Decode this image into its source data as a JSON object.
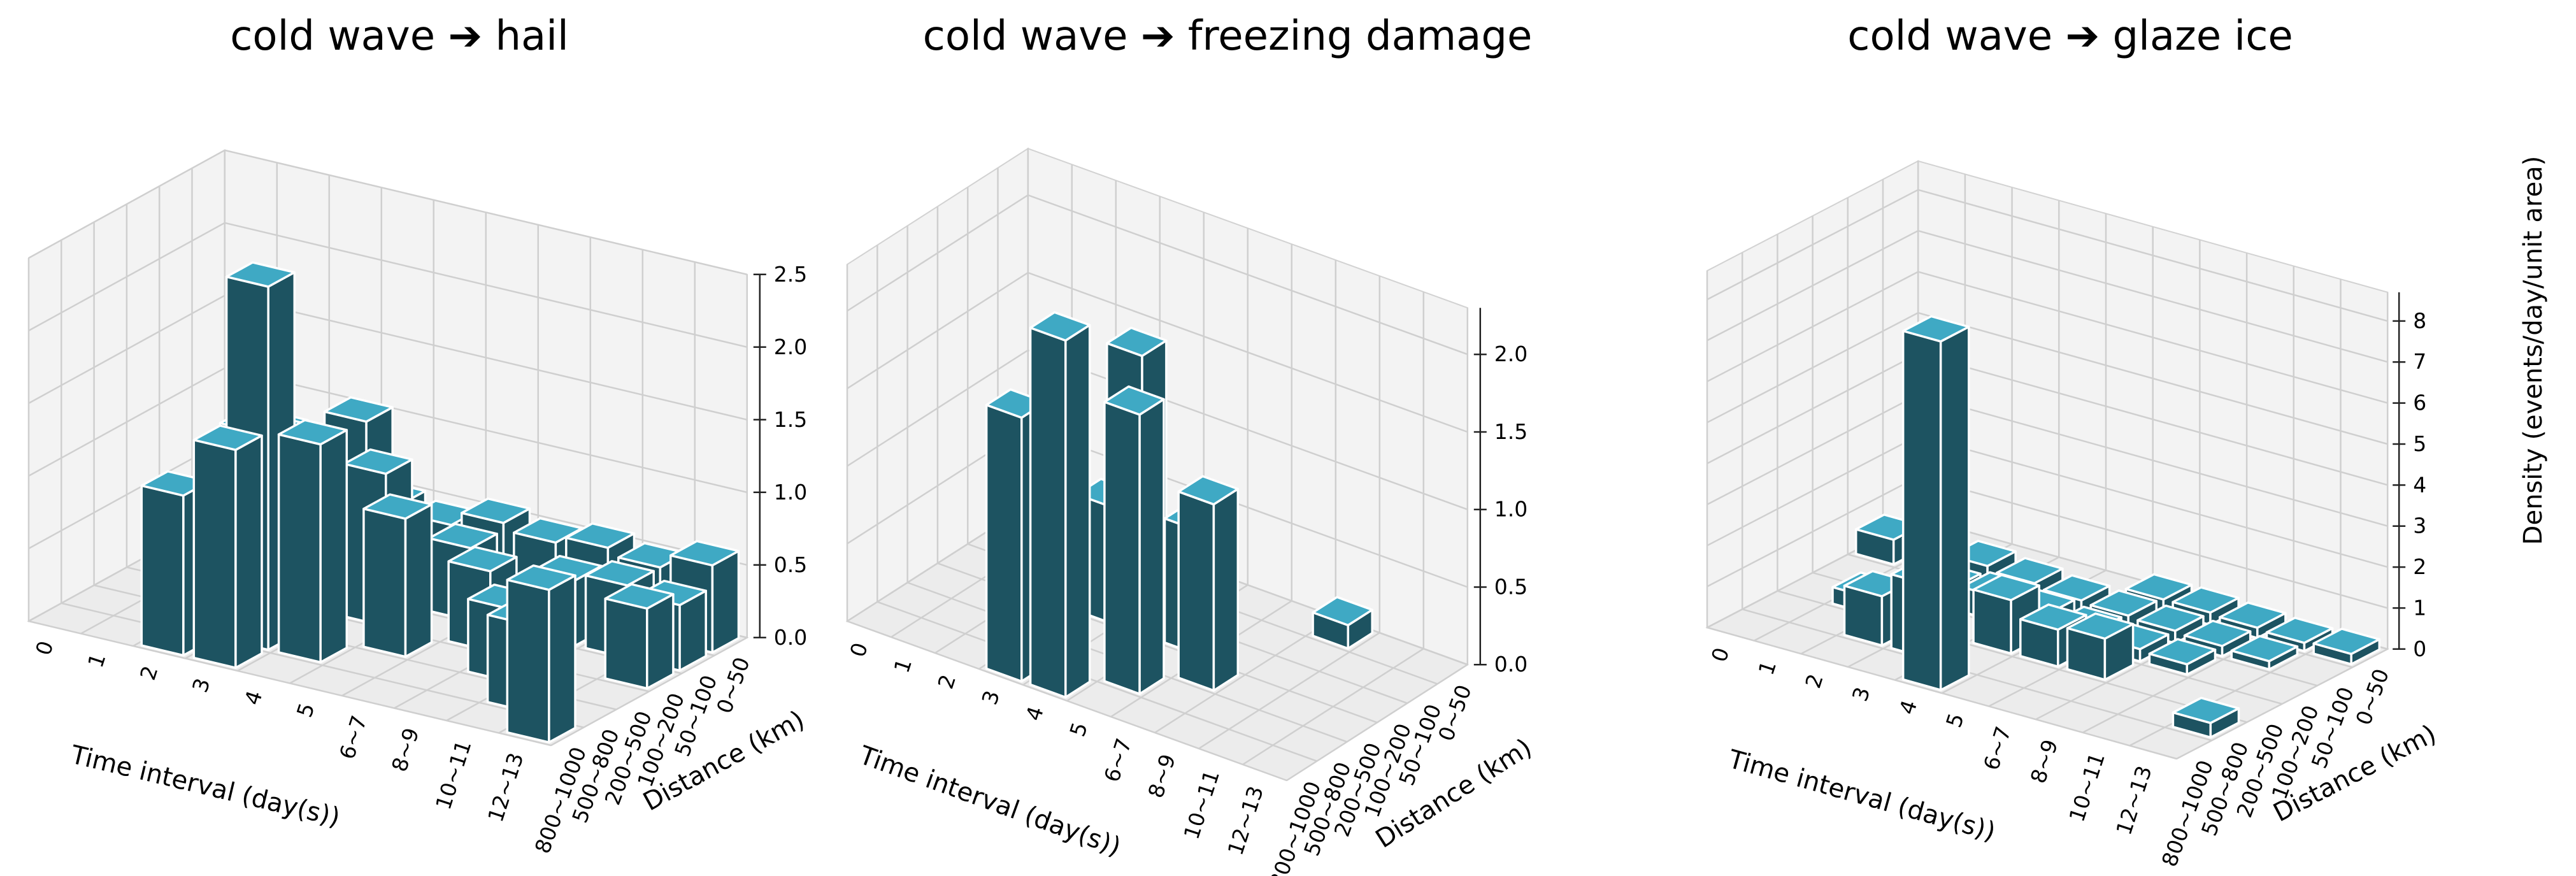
{
  "chart_data": [
    {
      "type": "bar3d",
      "title": "cold wave ➔ hail",
      "xlabel": "Time interval (day(s))",
      "ylabel": "Distance (km)",
      "zlabel": "",
      "x_ticks": [
        "0",
        "1",
        "2",
        "3",
        "4",
        "5",
        "6~7",
        "8~9",
        "10~11",
        "12~13"
      ],
      "y_ticks": [
        "0~50",
        "50~100",
        "100~200",
        "200~500",
        "500~800",
        "800~1000"
      ],
      "z_ticks": [
        "0.0",
        "0.5",
        "1.0",
        "1.5",
        "2.0",
        "2.5"
      ],
      "zlim": [
        0,
        2.5
      ],
      "bars": [
        {
          "x": 2,
          "y": 0,
          "z": 1.1
        },
        {
          "x": 3,
          "y": 1,
          "z": 2.5
        },
        {
          "x": 3,
          "y": 0,
          "z": 1.5
        },
        {
          "x": 3,
          "y": 2,
          "z": 1.3
        },
        {
          "x": 4,
          "y": 1,
          "z": 1.5
        },
        {
          "x": 1,
          "y": 4,
          "z": 0.95
        },
        {
          "x": 2,
          "y": 3,
          "z": 1.15
        },
        {
          "x": 3,
          "y": 4,
          "z": 1.2
        },
        {
          "x": 4,
          "y": 3,
          "z": 1.05
        },
        {
          "x": 5,
          "y": 2,
          "z": 0.95
        },
        {
          "x": 0,
          "y": 5,
          "z": 0.55
        },
        {
          "x": 1,
          "y": 5,
          "z": 0.5
        },
        {
          "x": 2,
          "y": 5,
          "z": 0.55
        },
        {
          "x": 3,
          "y": 5,
          "z": 0.5
        },
        {
          "x": 4,
          "y": 5,
          "z": 0.45
        },
        {
          "x": 5,
          "y": 4,
          "z": 0.5
        },
        {
          "x": 6,
          "y": 3,
          "z": 0.55
        },
        {
          "x": 7,
          "y": 2,
          "z": 0.5
        },
        {
          "x": 8,
          "y": 1,
          "z": 0.6
        },
        {
          "x": 9,
          "y": 0,
          "z": 1.05
        },
        {
          "x": 5,
          "y": 5,
          "z": 0.55
        },
        {
          "x": 6,
          "y": 5,
          "z": 0.5
        },
        {
          "x": 7,
          "y": 5,
          "z": 0.55
        },
        {
          "x": 8,
          "y": 5,
          "z": 0.5
        },
        {
          "x": 9,
          "y": 5,
          "z": 0.6
        },
        {
          "x": 7,
          "y": 4,
          "z": 0.45
        },
        {
          "x": 8,
          "y": 4,
          "z": 0.5
        },
        {
          "x": 9,
          "y": 3,
          "z": 0.55
        },
        {
          "x": 9,
          "y": 4,
          "z": 0.45
        }
      ]
    },
    {
      "type": "bar3d",
      "title": "cold wave ➔ freezing damage",
      "xlabel": "Time interval (day(s))",
      "ylabel": "Distance (km)",
      "zlabel": "",
      "x_ticks": [
        "0",
        "1",
        "2",
        "3",
        "4",
        "5",
        "6~7",
        "8~9",
        "10~11",
        "12~13"
      ],
      "y_ticks": [
        "0~50",
        "50~100",
        "100~200",
        "200~500",
        "500~800",
        "800~1000"
      ],
      "z_ticks": [
        "0.0",
        "0.5",
        "1.0",
        "1.5",
        "2.0"
      ],
      "zlim": [
        0,
        2.3
      ],
      "bars": [
        {
          "x": 3,
          "y": 0,
          "z": 1.7
        },
        {
          "x": 4,
          "y": 0,
          "z": 2.3
        },
        {
          "x": 3,
          "y": 3,
          "z": 0.75
        },
        {
          "x": 3,
          "y": 4,
          "z": 1.6
        },
        {
          "x": 5,
          "y": 1,
          "z": 1.8
        },
        {
          "x": 5,
          "y": 3,
          "z": 0.8
        },
        {
          "x": 6,
          "y": 2,
          "z": 1.2
        },
        {
          "x": 7,
          "y": 5,
          "z": 0.15
        }
      ]
    },
    {
      "type": "bar3d",
      "title": "cold wave ➔ glaze ice",
      "xlabel": "Time interval (day(s))",
      "ylabel": "Distance (km)",
      "zlabel": "Density (events/day/unit area)",
      "x_ticks": [
        "0",
        "1",
        "2",
        "3",
        "4",
        "5",
        "6~7",
        "8~9",
        "10~11",
        "12~13"
      ],
      "y_ticks": [
        "0~50",
        "50~100",
        "100~200",
        "200~500",
        "500~800",
        "800~1000"
      ],
      "z_ticks": [
        "0",
        "1",
        "2",
        "3",
        "4",
        "5",
        "6",
        "7",
        "8"
      ],
      "zlim": [
        0,
        8.7
      ],
      "bars": [
        {
          "x": 4,
          "y": 0,
          "z": 8.5
        },
        {
          "x": 2,
          "y": 1,
          "z": 1.2
        },
        {
          "x": 3,
          "y": 1,
          "z": 1.8
        },
        {
          "x": 4,
          "y": 2,
          "z": 1.3
        },
        {
          "x": 5,
          "y": 2,
          "z": 0.9
        },
        {
          "x": 6,
          "y": 2,
          "z": 1.0
        },
        {
          "x": 1,
          "y": 2,
          "z": 0.4
        },
        {
          "x": 2,
          "y": 3,
          "z": 0.5
        },
        {
          "x": 3,
          "y": 3,
          "z": 0.6
        },
        {
          "x": 4,
          "y": 3,
          "z": 0.5
        },
        {
          "x": 5,
          "y": 3,
          "z": 0.4
        },
        {
          "x": 6,
          "y": 3,
          "z": 0.3
        },
        {
          "x": 7,
          "y": 3,
          "z": 0.25
        },
        {
          "x": 0,
          "y": 4,
          "z": 0.6
        },
        {
          "x": 1,
          "y": 4,
          "z": 0.7
        },
        {
          "x": 2,
          "y": 4,
          "z": 0.6
        },
        {
          "x": 3,
          "y": 4,
          "z": 0.5
        },
        {
          "x": 4,
          "y": 4,
          "z": 0.4
        },
        {
          "x": 5,
          "y": 4,
          "z": 0.35
        },
        {
          "x": 6,
          "y": 4,
          "z": 0.3
        },
        {
          "x": 7,
          "y": 4,
          "z": 0.25
        },
        {
          "x": 8,
          "y": 4,
          "z": 0.2
        },
        {
          "x": 9,
          "y": 1,
          "z": 0.35
        },
        {
          "x": 5,
          "y": 5,
          "z": 0.3
        },
        {
          "x": 6,
          "y": 5,
          "z": 0.3
        },
        {
          "x": 7,
          "y": 5,
          "z": 0.25
        },
        {
          "x": 8,
          "y": 5,
          "z": 0.2
        },
        {
          "x": 9,
          "y": 5,
          "z": 0.25
        }
      ]
    }
  ],
  "colors": {
    "bar_side": "#1d5361",
    "bar_top": "#3fa9c4",
    "bar_edge": "#ffffff"
  }
}
